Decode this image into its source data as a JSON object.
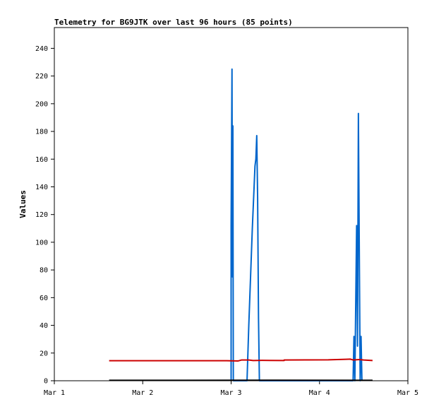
{
  "chart_data": {
    "type": "line",
    "title": "Telemetry for BG9JTK over last 96 hours (85 points)",
    "ylabel": "Values",
    "xlabel": "",
    "x_ticks": [
      "Mar 1",
      "Mar 2",
      "Mar 3",
      "Mar 4",
      "Mar 5"
    ],
    "y_ticks": [
      "0",
      "20",
      "40",
      "60",
      "80",
      "100",
      "120",
      "140",
      "160",
      "180",
      "200",
      "220",
      "240"
    ],
    "xlim": [
      0,
      4
    ],
    "ylim": [
      0,
      255
    ],
    "grid": false,
    "legend": "none",
    "x_unit": "days since Mar 1 00:00",
    "series": [
      {
        "color": "#0066cc",
        "points": [
          [
            2.0,
            0
          ],
          [
            2.0,
            112
          ],
          [
            2.01,
            225
          ],
          [
            2.015,
            75
          ],
          [
            2.02,
            184
          ],
          [
            2.025,
            0
          ],
          [
            2.18,
            0
          ],
          [
            2.2,
            40
          ],
          [
            2.24,
            110
          ],
          [
            2.27,
            155
          ],
          [
            2.28,
            160
          ],
          [
            2.29,
            177
          ],
          [
            2.3,
            132
          ],
          [
            2.31,
            45
          ],
          [
            2.32,
            0
          ],
          [
            3.38,
            0
          ],
          [
            3.39,
            32
          ],
          [
            3.4,
            0
          ],
          [
            3.41,
            56
          ],
          [
            3.42,
            112
          ],
          [
            3.43,
            25
          ],
          [
            3.44,
            193
          ],
          [
            3.45,
            96
          ],
          [
            3.46,
            0
          ],
          [
            3.47,
            32
          ],
          [
            3.48,
            0
          ]
        ]
      },
      {
        "color": "#cc0000",
        "points": [
          [
            0.62,
            14.5
          ],
          [
            1.95,
            14.5
          ],
          [
            2.08,
            14.3
          ],
          [
            2.12,
            15.0
          ],
          [
            2.2,
            15.0
          ],
          [
            2.25,
            14.6
          ],
          [
            2.35,
            14.7
          ],
          [
            2.6,
            14.6
          ],
          [
            2.6,
            15.0
          ],
          [
            3.1,
            15.1
          ],
          [
            3.3,
            15.5
          ],
          [
            3.35,
            15.6
          ],
          [
            3.38,
            15.0
          ],
          [
            3.45,
            15.3
          ],
          [
            3.5,
            15.0
          ],
          [
            3.6,
            14.6
          ]
        ]
      },
      {
        "color": "#000000",
        "points": [
          [
            0.62,
            0.3
          ],
          [
            1.5,
            0.3
          ],
          [
            2.5,
            0.4
          ],
          [
            3.6,
            0.3
          ]
        ]
      }
    ]
  }
}
